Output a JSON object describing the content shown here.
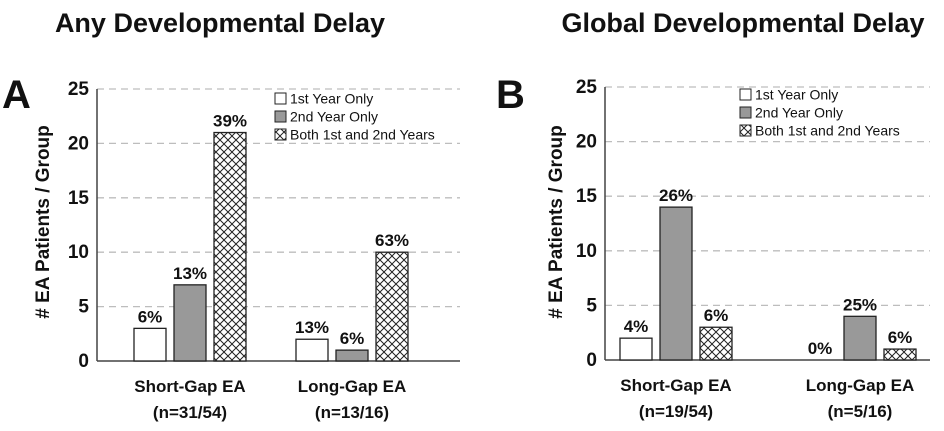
{
  "chart_data": [
    {
      "type": "bar",
      "panel": "A",
      "title": "Any Developmental Delay",
      "ylabel": "# EA Patients / Group",
      "xlabel": "",
      "ylim": [
        0,
        25
      ],
      "yticks": [
        "0",
        "5",
        "10",
        "15",
        "20",
        "25"
      ],
      "grid": true,
      "legend_position": "top-right",
      "categories": [
        {
          "name": "Short-Gap EA",
          "n": "(n=31/54)"
        },
        {
          "name": "Long-Gap EA",
          "n": "(n=13/16)"
        }
      ],
      "series": [
        {
          "name": "1st Year Only",
          "values": [
            3,
            2
          ],
          "labels": [
            "6%",
            "13%"
          ],
          "fill": "#ffffff"
        },
        {
          "name": "2nd Year Only",
          "values": [
            7,
            1
          ],
          "labels": [
            "13%",
            "6%"
          ],
          "fill": "#999999"
        },
        {
          "name": "Both 1st and 2nd Years",
          "values": [
            21,
            10
          ],
          "labels": [
            "39%",
            "63%"
          ],
          "fill": "pattern"
        }
      ]
    },
    {
      "type": "bar",
      "panel": "B",
      "title": "Global Developmental Delay",
      "ylabel": "# EA Patients / Group",
      "xlabel": "",
      "ylim": [
        0,
        25
      ],
      "yticks": [
        "0",
        "5",
        "10",
        "15",
        "20",
        "25"
      ],
      "grid": true,
      "legend_position": "top-right",
      "categories": [
        {
          "name": "Short-Gap EA",
          "n": "(n=19/54)"
        },
        {
          "name": "Long-Gap EA",
          "n": "(n=5/16)"
        }
      ],
      "series": [
        {
          "name": "1st Year Only",
          "values": [
            2,
            0
          ],
          "labels": [
            "4%",
            "0%"
          ],
          "fill": "#ffffff"
        },
        {
          "name": "2nd Year Only",
          "values": [
            14,
            4
          ],
          "labels": [
            "26%",
            "25%"
          ],
          "fill": "#999999"
        },
        {
          "name": "Both 1st and 2nd Years",
          "values": [
            3,
            1
          ],
          "labels": [
            "6%",
            "6%"
          ],
          "fill": "pattern"
        }
      ]
    }
  ]
}
